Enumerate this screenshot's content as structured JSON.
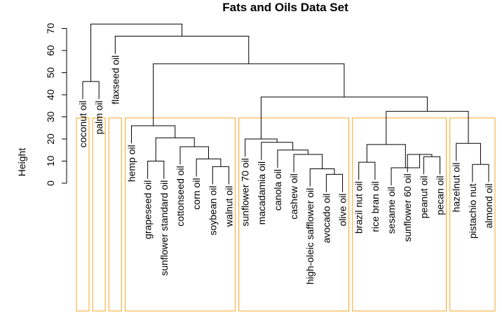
{
  "title": "Fats and Oils Data Set",
  "ylabel": "Height",
  "y_axis": {
    "ticks": [
      0,
      10,
      20,
      30,
      40,
      50,
      60,
      70
    ]
  },
  "colors": {
    "cluster_box": "#f5a623",
    "branch": "#000000"
  },
  "leaves": [
    "coconut oil",
    "palm oil",
    "flaxseed oil",
    "hemp oil",
    "grapeseed oil",
    "sunflower standard oil",
    "cottonseed oil",
    "corn oil",
    "soybean oil",
    "walnut oil",
    "sunflower 70 oil",
    "macadamia oil",
    "canola oil",
    "cashew oil",
    "high-oleic safflower oil",
    "avocado oil",
    "olive oil",
    "brazil nut oil",
    "rice bran oil",
    "sesame oil",
    "sunflower 60 oil",
    "peanut oil",
    "pecan oil",
    "hazelnut oil",
    "pistachio nut",
    "almond oil"
  ],
  "merges": [
    {
      "a": 8,
      "b": 9,
      "h": 7.5
    },
    {
      "a": 7,
      "b": "m0",
      "h": 11
    },
    {
      "a": 6,
      "b": "m1",
      "h": 16.5
    },
    {
      "a": 4,
      "b": 5,
      "h": 10
    },
    {
      "a": "m3",
      "b": "m2",
      "h": 20.5
    },
    {
      "a": 3,
      "b": "m4",
      "h": 26
    },
    {
      "a": 15,
      "b": 16,
      "h": 4
    },
    {
      "a": 14,
      "b": "m6",
      "h": 6.5
    },
    {
      "a": 13,
      "b": "m7",
      "h": 13
    },
    {
      "a": 12,
      "b": "m8",
      "h": 15
    },
    {
      "a": 11,
      "b": "m9",
      "h": 18.5
    },
    {
      "a": 10,
      "b": "m10",
      "h": 20
    },
    {
      "a": 17,
      "b": 18,
      "h": 9.5
    },
    {
      "a": 21,
      "b": 22,
      "h": 12
    },
    {
      "a": 20,
      "b": "m13",
      "h": 13
    },
    {
      "a": 19,
      "b": "m14",
      "h": 7
    },
    {
      "a": "m12",
      "b": "m15",
      "h": 17.5
    },
    {
      "a": 24,
      "b": 25,
      "h": 8.5
    },
    {
      "a": 23,
      "b": "m17",
      "h": 18
    },
    {
      "a": "m16",
      "b": "m18",
      "h": 32.5
    },
    {
      "a": "m11",
      "b": "m19",
      "h": 39
    },
    {
      "a": "m5",
      "b": "m20",
      "h": 54
    },
    {
      "a": 0,
      "b": 1,
      "h": 46
    },
    {
      "a": 2,
      "b": "m21",
      "h": 66.5
    },
    {
      "a": "m22",
      "b": "m23",
      "h": 72
    }
  ],
  "clusters": [
    {
      "from": 0,
      "to": 0
    },
    {
      "from": 1,
      "to": 1
    },
    {
      "from": 2,
      "to": 2
    },
    {
      "from": 3,
      "to": 9
    },
    {
      "from": 10,
      "to": 16
    },
    {
      "from": 17,
      "to": 22
    },
    {
      "from": 23,
      "to": 25
    }
  ]
}
